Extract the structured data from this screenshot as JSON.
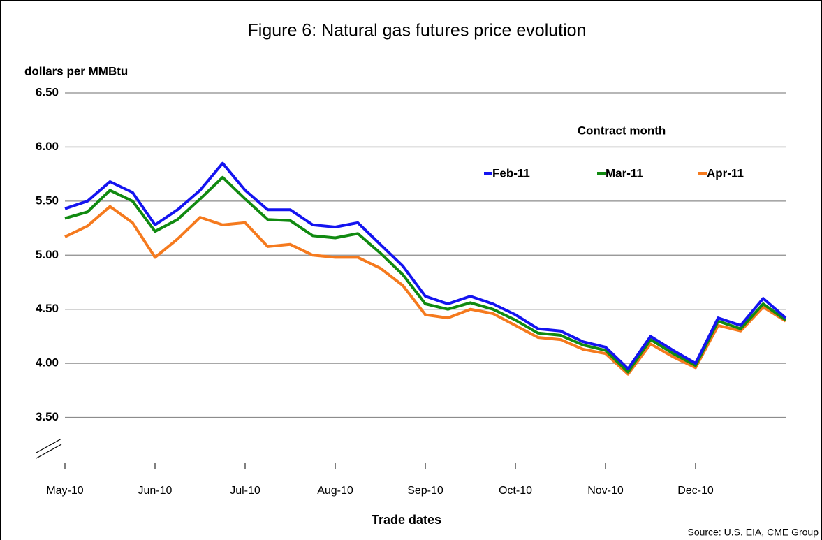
{
  "chart_data": {
    "type": "line",
    "title": "Figure 6: Natural gas futures price evolution",
    "y_label": "dollars per MMBtu",
    "x_label": "Trade dates",
    "legend_title": "Contract month",
    "source": "Source:  U.S. EIA, CME Group",
    "categories": [
      "May-10",
      null,
      null,
      null,
      "Jun-10",
      null,
      null,
      null,
      "Jul-10",
      null,
      null,
      null,
      "Aug-10",
      null,
      null,
      null,
      "Sep-10",
      null,
      null,
      null,
      "Oct-10",
      null,
      null,
      null,
      "Nov-10",
      null,
      null,
      null,
      "Dec-10",
      null,
      null,
      null,
      null
    ],
    "series": [
      {
        "name": "Feb-11",
        "color": "#1414f0",
        "values": [
          5.43,
          5.5,
          5.68,
          5.58,
          5.28,
          5.42,
          5.6,
          5.85,
          5.6,
          5.42,
          5.42,
          5.28,
          5.26,
          5.3,
          5.1,
          4.9,
          4.62,
          4.55,
          4.62,
          4.55,
          4.45,
          4.32,
          4.3,
          4.2,
          4.15,
          3.95,
          4.25,
          4.12,
          4.0,
          4.42,
          4.35,
          4.6,
          4.42
        ]
      },
      {
        "name": "Mar-11",
        "color": "#118a11",
        "values": [
          5.34,
          5.4,
          5.6,
          5.5,
          5.22,
          5.33,
          5.52,
          5.72,
          5.52,
          5.33,
          5.32,
          5.18,
          5.16,
          5.2,
          5.02,
          4.82,
          4.55,
          4.5,
          4.56,
          4.5,
          4.4,
          4.28,
          4.26,
          4.17,
          4.12,
          3.92,
          4.22,
          4.09,
          3.98,
          4.39,
          4.32,
          4.55,
          4.4
        ]
      },
      {
        "name": "Apr-11",
        "color": "#f57a1e",
        "values": [
          5.17,
          5.27,
          5.45,
          5.3,
          4.98,
          5.15,
          5.35,
          5.28,
          5.3,
          5.08,
          5.1,
          5.0,
          4.98,
          4.98,
          4.88,
          4.72,
          4.45,
          4.42,
          4.5,
          4.46,
          4.35,
          4.24,
          4.22,
          4.13,
          4.09,
          3.9,
          4.18,
          4.06,
          3.96,
          4.35,
          4.3,
          4.52,
          4.39
        ]
      }
    ],
    "ylim": [
      3.0,
      6.5
    ],
    "yticks": [
      {
        "value": 3.5,
        "label": "3.50"
      },
      {
        "value": 4,
        "label": "4.00"
      },
      {
        "value": 4.5,
        "label": "4.50"
      },
      {
        "value": 5,
        "label": "5.00"
      },
      {
        "value": 5.5,
        "label": "5.50"
      },
      {
        "value": 6,
        "label": "6.00"
      },
      {
        "value": 6.5,
        "label": "6.50"
      }
    ],
    "grid": true
  }
}
